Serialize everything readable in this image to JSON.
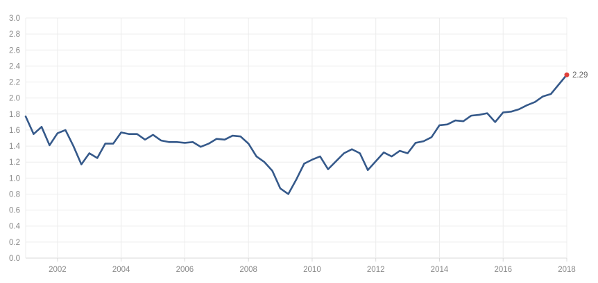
{
  "chart_data": {
    "type": "line",
    "title": "",
    "xlabel": "",
    "ylabel": "",
    "xlim": [
      2001.0,
      2018.0
    ],
    "ylim": [
      0,
      3.0
    ],
    "grid": true,
    "yticks": [
      "0.0",
      "0.2",
      "0.4",
      "0.6",
      "0.8",
      "1.0",
      "1.2",
      "1.4",
      "1.6",
      "1.8",
      "2.0",
      "2.2",
      "2.4",
      "2.6",
      "2.8",
      "3.0"
    ],
    "xticks": [
      "2002",
      "2004",
      "2006",
      "2008",
      "2010",
      "2012",
      "2014",
      "2016",
      "2018"
    ],
    "series": [
      {
        "color": "#35598a",
        "x": [
          2001.0,
          2001.25,
          2001.5,
          2001.75,
          2002.0,
          2002.25,
          2002.5,
          2002.75,
          2003.0,
          2003.25,
          2003.5,
          2003.75,
          2004.0,
          2004.25,
          2004.5,
          2004.75,
          2005.0,
          2005.25,
          2005.5,
          2005.75,
          2006.0,
          2006.25,
          2006.5,
          2006.75,
          2007.0,
          2007.25,
          2007.5,
          2007.75,
          2008.0,
          2008.25,
          2008.5,
          2008.75,
          2009.0,
          2009.25,
          2009.5,
          2009.75,
          2010.0,
          2010.25,
          2010.5,
          2010.75,
          2011.0,
          2011.25,
          2011.5,
          2011.75,
          2012.0,
          2012.25,
          2012.5,
          2012.75,
          2013.0,
          2013.25,
          2013.5,
          2013.75,
          2014.0,
          2014.25,
          2014.5,
          2014.75,
          2015.0,
          2015.25,
          2015.5,
          2015.75,
          2016.0,
          2016.25,
          2016.5,
          2016.75,
          2017.0,
          2017.25,
          2017.5,
          2017.75,
          2018.0
        ],
        "values": [
          1.77,
          1.55,
          1.64,
          1.41,
          1.56,
          1.6,
          1.4,
          1.17,
          1.31,
          1.25,
          1.43,
          1.43,
          1.57,
          1.55,
          1.55,
          1.48,
          1.54,
          1.47,
          1.45,
          1.45,
          1.44,
          1.45,
          1.39,
          1.43,
          1.49,
          1.48,
          1.53,
          1.52,
          1.43,
          1.27,
          1.2,
          1.09,
          0.87,
          0.8,
          0.98,
          1.18,
          1.23,
          1.27,
          1.11,
          1.21,
          1.31,
          1.36,
          1.31,
          1.1,
          1.21,
          1.32,
          1.27,
          1.34,
          1.31,
          1.44,
          1.46,
          1.51,
          1.66,
          1.67,
          1.72,
          1.71,
          1.78,
          1.79,
          1.81,
          1.7,
          1.82,
          1.83,
          1.86,
          1.91,
          1.95,
          2.02,
          2.05,
          2.17,
          2.29
        ]
      }
    ],
    "end_label": "2.29",
    "end_marker_color": "#e0403a"
  }
}
